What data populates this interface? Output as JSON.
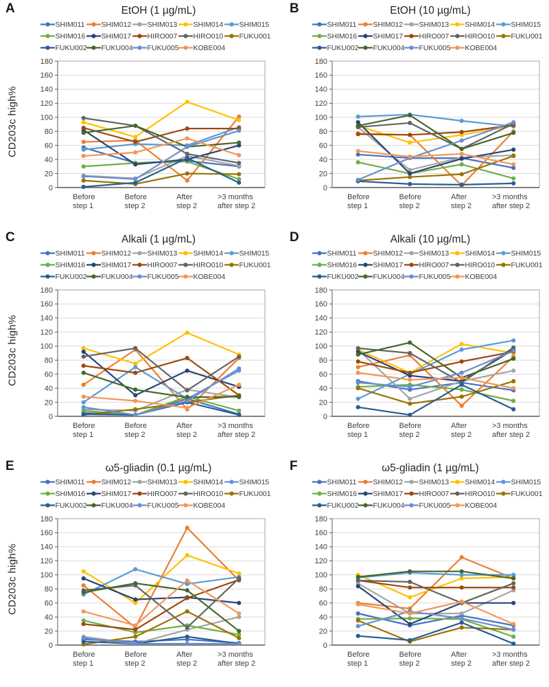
{
  "figure": {
    "ylabel": "CD203c high%",
    "palette": {
      "grid_color": "#d9d9d9",
      "plot_border": "#a6a6a6",
      "axis_line": "#595959",
      "tick_text": "#404040",
      "title_text": "#262626"
    }
  },
  "chart_data": [
    {
      "panel_letter": "A",
      "title": "EtOH (1 µg/mL)",
      "type": "line",
      "ylabel": "CD203c high%",
      "categories": [
        "Before\nstep 1",
        "Before\nstep 2",
        "After\nstep 2",
        ">3 months\nafter step 2"
      ],
      "ylim": [
        0,
        180
      ],
      "ytick_step": 20,
      "grid": true,
      "legend_position": "top",
      "legend_rows": [
        5,
        5,
        4
      ],
      "series": [
        {
          "name": "SHIM011",
          "color": "#4472C4",
          "values": [
            57,
            35,
            38,
            30
          ]
        },
        {
          "name": "SHIM012",
          "color": "#ED7D31",
          "values": [
            65,
            67,
            10,
            101
          ]
        },
        {
          "name": "SHIM013",
          "color": "#A5A5A5",
          "values": [
            17,
            13,
            45,
            31
          ]
        },
        {
          "name": "SHIM014",
          "color": "#FFC000",
          "values": [
            93,
            72,
            122,
            96
          ]
        },
        {
          "name": "SHIM015",
          "color": "#5B9BD5",
          "values": [
            54,
            62,
            60,
            86
          ]
        },
        {
          "name": "SHIM016",
          "color": "#70AD47",
          "values": [
            30,
            35,
            37,
            12
          ]
        },
        {
          "name": "SHIM017",
          "color": "#264478",
          "values": [
            82,
            33,
            40,
            60
          ]
        },
        {
          "name": "HIRO007",
          "color": "#9E480E",
          "values": [
            85,
            65,
            84,
            84
          ]
        },
        {
          "name": "HIRO010",
          "color": "#636363",
          "values": [
            99,
            88,
            48,
            35
          ]
        },
        {
          "name": "FUKU001",
          "color": "#997300",
          "values": [
            10,
            5,
            20,
            19
          ]
        },
        {
          "name": "FUKU002",
          "color": "#255E91",
          "values": [
            1,
            7,
            42,
            7
          ]
        },
        {
          "name": "FUKU004",
          "color": "#43682B",
          "values": [
            78,
            88,
            58,
            64
          ]
        },
        {
          "name": "FUKU005",
          "color": "#698ED0",
          "values": [
            16,
            12,
            58,
            81
          ]
        },
        {
          "name": "KOBE004",
          "color": "#F1975A",
          "values": [
            45,
            50,
            70,
            46
          ]
        }
      ]
    },
    {
      "panel_letter": "B",
      "title": "EtOH (10 µg/mL)",
      "type": "line",
      "ylabel": "",
      "categories": [
        "Before\nstep 1",
        "Before\nstep 2",
        "After\nstep 2",
        ">3 months\nafter step 2"
      ],
      "ylim": [
        0,
        180
      ],
      "ytick_step": 20,
      "grid": true,
      "legend_position": "top",
      "legend_rows": [
        5,
        5,
        4
      ],
      "series": [
        {
          "name": "SHIM011",
          "color": "#4472C4",
          "values": [
            47,
            42,
            42,
            28
          ]
        },
        {
          "name": "SHIM012",
          "color": "#ED7D31",
          "values": [
            77,
            75,
            3,
            80
          ]
        },
        {
          "name": "SHIM013",
          "color": "#A5A5A5",
          "values": [
            86,
            25,
            43,
            46
          ]
        },
        {
          "name": "SHIM014",
          "color": "#FFC000",
          "values": [
            88,
            64,
            75,
            88
          ]
        },
        {
          "name": "SHIM015",
          "color": "#5B9BD5",
          "values": [
            101,
            104,
            95,
            87
          ]
        },
        {
          "name": "SHIM016",
          "color": "#70AD47",
          "values": [
            36,
            20,
            33,
            13
          ]
        },
        {
          "name": "SHIM017",
          "color": "#264478",
          "values": [
            93,
            20,
            41,
            54
          ]
        },
        {
          "name": "HIRO007",
          "color": "#9E480E",
          "values": [
            76,
            75,
            79,
            89
          ]
        },
        {
          "name": "HIRO010",
          "color": "#636363",
          "values": [
            86,
            92,
            55,
            91
          ]
        },
        {
          "name": "FUKU001",
          "color": "#997300",
          "values": [
            10,
            15,
            19,
            45
          ]
        },
        {
          "name": "FUKU002",
          "color": "#255E91",
          "values": [
            9,
            5,
            4,
            6
          ]
        },
        {
          "name": "FUKU004",
          "color": "#43682B",
          "values": [
            88,
            103,
            55,
            78
          ]
        },
        {
          "name": "FUKU005",
          "color": "#698ED0",
          "values": [
            11,
            42,
            67,
            93
          ]
        },
        {
          "name": "KOBE004",
          "color": "#F1975A",
          "values": [
            52,
            44,
            48,
            33
          ]
        }
      ]
    },
    {
      "panel_letter": "C",
      "title": "Alkali (1 µg/mL)",
      "type": "line",
      "ylabel": "CD203c high%",
      "categories": [
        "Before\nstep 1",
        "Before\nstep 2",
        "After\nstep 2",
        ">3 months\nafter step 2"
      ],
      "ylim": [
        0,
        180
      ],
      "ytick_step": 20,
      "grid": true,
      "legend_position": "top",
      "legend_rows": [
        5,
        5,
        4
      ],
      "series": [
        {
          "name": "SHIM011",
          "color": "#4472C4",
          "values": [
            5,
            2,
            25,
            3
          ]
        },
        {
          "name": "SHIM012",
          "color": "#ED7D31",
          "values": [
            45,
            95,
            10,
            83
          ]
        },
        {
          "name": "SHIM013",
          "color": "#A5A5A5",
          "values": [
            10,
            8,
            38,
            27
          ]
        },
        {
          "name": "SHIM014",
          "color": "#FFC000",
          "values": [
            97,
            75,
            119,
            88
          ]
        },
        {
          "name": "SHIM015",
          "color": "#5B9BD5",
          "values": [
            20,
            70,
            25,
            65
          ]
        },
        {
          "name": "SHIM016",
          "color": "#70AD47",
          "values": [
            8,
            2,
            28,
            8
          ]
        },
        {
          "name": "SHIM017",
          "color": "#264478",
          "values": [
            92,
            30,
            65,
            42
          ]
        },
        {
          "name": "HIRO007",
          "color": "#9E480E",
          "values": [
            72,
            62,
            83,
            30
          ]
        },
        {
          "name": "HIRO010",
          "color": "#636363",
          "values": [
            85,
            97,
            37,
            85
          ]
        },
        {
          "name": "FUKU001",
          "color": "#997300",
          "values": [
            2,
            10,
            20,
            30
          ]
        },
        {
          "name": "FUKU002",
          "color": "#255E91",
          "values": [
            3,
            2,
            20,
            2
          ]
        },
        {
          "name": "FUKU004",
          "color": "#43682B",
          "values": [
            62,
            38,
            27,
            28
          ]
        },
        {
          "name": "FUKU005",
          "color": "#698ED0",
          "values": [
            13,
            2,
            22,
            68
          ]
        },
        {
          "name": "KOBE004",
          "color": "#F1975A",
          "values": [
            28,
            22,
            12,
            45
          ]
        }
      ]
    },
    {
      "panel_letter": "D",
      "title": "Alkali (10 µg/mL)",
      "type": "line",
      "ylabel": "",
      "categories": [
        "Before\nstep 1",
        "Before\nstep 2",
        "After\nstep 2",
        ">3 months\nafter step 2"
      ],
      "ylim": [
        0,
        180
      ],
      "ytick_step": 20,
      "grid": true,
      "legend_position": "top",
      "legend_rows": [
        5,
        5,
        4
      ],
      "series": [
        {
          "name": "SHIM011",
          "color": "#4472C4",
          "values": [
            50,
            38,
            48,
            37
          ]
        },
        {
          "name": "SHIM012",
          "color": "#ED7D31",
          "values": [
            70,
            87,
            15,
            85
          ]
        },
        {
          "name": "SHIM013",
          "color": "#A5A5A5",
          "values": [
            95,
            25,
            50,
            65
          ]
        },
        {
          "name": "SHIM014",
          "color": "#FFC000",
          "values": [
            95,
            62,
            103,
            90
          ]
        },
        {
          "name": "SHIM015",
          "color": "#5B9BD5",
          "values": [
            25,
            60,
            95,
            108
          ]
        },
        {
          "name": "SHIM016",
          "color": "#70AD47",
          "values": [
            42,
            45,
            38,
            22
          ]
        },
        {
          "name": "SHIM017",
          "color": "#264478",
          "values": [
            92,
            58,
            50,
            95
          ]
        },
        {
          "name": "HIRO007",
          "color": "#9E480E",
          "values": [
            78,
            62,
            78,
            92
          ]
        },
        {
          "name": "HIRO010",
          "color": "#636363",
          "values": [
            97,
            90,
            48,
            98
          ]
        },
        {
          "name": "FUKU001",
          "color": "#997300",
          "values": [
            40,
            18,
            28,
            50
          ]
        },
        {
          "name": "FUKU002",
          "color": "#255E91",
          "values": [
            13,
            2,
            45,
            10
          ]
        },
        {
          "name": "FUKU004",
          "color": "#43682B",
          "values": [
            88,
            105,
            55,
            82
          ]
        },
        {
          "name": "FUKU005",
          "color": "#698ED0",
          "values": [
            48,
            42,
            62,
            93
          ]
        },
        {
          "name": "KOBE004",
          "color": "#F1975A",
          "values": [
            62,
            52,
            55,
            40
          ]
        }
      ]
    },
    {
      "panel_letter": "E",
      "title": "ω5-gliadin (0.1 µg/mL)",
      "type": "line",
      "ylabel": "CD203c high%",
      "categories": [
        "Before\nstep 1",
        "Before\nstep 2",
        "After\nstep 2",
        ">3 months\nafter step 2"
      ],
      "ylim": [
        0,
        180
      ],
      "ytick_step": 20,
      "grid": true,
      "legend_position": "top",
      "legend_rows": [
        5,
        5,
        4
      ],
      "series": [
        {
          "name": "SHIM011",
          "color": "#4472C4",
          "values": [
            8,
            5,
            8,
            3
          ]
        },
        {
          "name": "SHIM012",
          "color": "#ED7D31",
          "values": [
            85,
            25,
            167,
            92
          ]
        },
        {
          "name": "SHIM013",
          "color": "#A5A5A5",
          "values": [
            12,
            2,
            22,
            40
          ]
        },
        {
          "name": "SHIM014",
          "color": "#FFC000",
          "values": [
            105,
            60,
            128,
            102
          ]
        },
        {
          "name": "SHIM015",
          "color": "#5B9BD5",
          "values": [
            72,
            108,
            87,
            97
          ]
        },
        {
          "name": "SHIM016",
          "color": "#70AD47",
          "values": [
            35,
            18,
            28,
            15
          ]
        },
        {
          "name": "SHIM017",
          "color": "#264478",
          "values": [
            95,
            65,
            68,
            60
          ]
        },
        {
          "name": "HIRO007",
          "color": "#9E480E",
          "values": [
            30,
            22,
            67,
            93
          ]
        },
        {
          "name": "HIRO010",
          "color": "#636363",
          "values": [
            78,
            85,
            25,
            95
          ]
        },
        {
          "name": "FUKU001",
          "color": "#997300",
          "values": [
            1,
            12,
            48,
            10
          ]
        },
        {
          "name": "FUKU002",
          "color": "#255E91",
          "values": [
            5,
            2,
            12,
            2
          ]
        },
        {
          "name": "FUKU004",
          "color": "#43682B",
          "values": [
            75,
            88,
            78,
            20
          ]
        },
        {
          "name": "FUKU005",
          "color": "#698ED0",
          "values": [
            10,
            2,
            2,
            2
          ]
        },
        {
          "name": "KOBE004",
          "color": "#F1975A",
          "values": [
            48,
            28,
            92,
            45
          ]
        }
      ]
    },
    {
      "panel_letter": "F",
      "title": "ω5-gliadin (1 µg/mL)",
      "type": "line",
      "ylabel": "",
      "categories": [
        "Before\nstep 1",
        "Before\nstep 2",
        "After\nstep 2",
        ">3 months\nafter step 2"
      ],
      "ylim": [
        0,
        180
      ],
      "ytick_step": 20,
      "grid": true,
      "legend_position": "top",
      "legend_rows": [
        5,
        5,
        4
      ],
      "series": [
        {
          "name": "SHIM011",
          "color": "#4472C4",
          "values": [
            45,
            28,
            42,
            28
          ]
        },
        {
          "name": "SHIM012",
          "color": "#ED7D31",
          "values": [
            60,
            52,
            125,
            95
          ]
        },
        {
          "name": "SHIM013",
          "color": "#A5A5A5",
          "values": [
            88,
            45,
            45,
            78
          ]
        },
        {
          "name": "SHIM014",
          "color": "#FFC000",
          "values": [
            100,
            68,
            95,
            97
          ]
        },
        {
          "name": "SHIM015",
          "color": "#5B9BD5",
          "values": [
            96,
            103,
            100,
            100
          ]
        },
        {
          "name": "SHIM016",
          "color": "#70AD47",
          "values": [
            37,
            38,
            37,
            12
          ]
        },
        {
          "name": "SHIM017",
          "color": "#264478",
          "values": [
            84,
            30,
            60,
            60
          ]
        },
        {
          "name": "HIRO007",
          "color": "#9E480E",
          "values": [
            92,
            82,
            82,
            82
          ]
        },
        {
          "name": "HIRO010",
          "color": "#636363",
          "values": [
            92,
            90,
            60,
            88
          ]
        },
        {
          "name": "FUKU001",
          "color": "#997300",
          "values": [
            35,
            5,
            25,
            22
          ]
        },
        {
          "name": "FUKU002",
          "color": "#255E91",
          "values": [
            13,
            7,
            32,
            2
          ]
        },
        {
          "name": "FUKU004",
          "color": "#43682B",
          "values": [
            97,
            105,
            105,
            95
          ]
        },
        {
          "name": "FUKU005",
          "color": "#698ED0",
          "values": [
            27,
            48,
            38,
            22
          ]
        },
        {
          "name": "KOBE004",
          "color": "#F1975A",
          "values": [
            58,
            45,
            62,
            30
          ]
        }
      ]
    }
  ]
}
